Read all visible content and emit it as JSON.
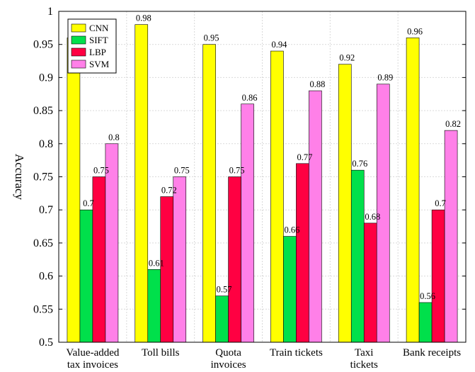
{
  "chart_data": {
    "type": "bar",
    "title": "",
    "xlabel": "",
    "ylabel": "Accuracy",
    "ylim": [
      0.5,
      1
    ],
    "yticks": [
      "0.5",
      "0.55",
      "0.6",
      "0.65",
      "0.7",
      "0.75",
      "0.8",
      "0.85",
      "0.9",
      "0.95",
      "1"
    ],
    "grid": true,
    "legend_position": "top-left",
    "categories": [
      [
        "Value-added",
        "tax invoices"
      ],
      [
        "Toll bills"
      ],
      [
        "Quota",
        "invoices"
      ],
      [
        "Train tickets"
      ],
      [
        "Taxi",
        "tickets"
      ],
      [
        "Bank receipts"
      ]
    ],
    "series": [
      {
        "name": "CNN",
        "color": "#ffff00",
        "values": [
          0.96,
          0.98,
          0.95,
          0.94,
          0.92,
          0.96
        ],
        "labels": [
          "",
          "0.98",
          "0.95",
          "0.94",
          "0.92",
          "0.96"
        ]
      },
      {
        "name": "SIFT",
        "color": "#00e04b",
        "values": [
          0.7,
          0.61,
          0.57,
          0.66,
          0.76,
          0.56
        ],
        "labels": [
          "0.7",
          "0.61",
          "0.57",
          "0.66",
          "0.76",
          "0.56"
        ]
      },
      {
        "name": "LBP",
        "color": "#ff0042",
        "values": [
          0.75,
          0.72,
          0.75,
          0.77,
          0.68,
          0.7
        ],
        "labels": [
          "0.75",
          "0.72",
          "0.75",
          "0.77",
          "0.68",
          "0.7"
        ]
      },
      {
        "name": "SVM",
        "color": "#ff80e8",
        "values": [
          0.8,
          0.75,
          0.86,
          0.88,
          0.89,
          0.82
        ],
        "labels": [
          "0.8",
          "0.75",
          "0.86",
          "0.88",
          "0.89",
          "0.82"
        ]
      }
    ]
  }
}
